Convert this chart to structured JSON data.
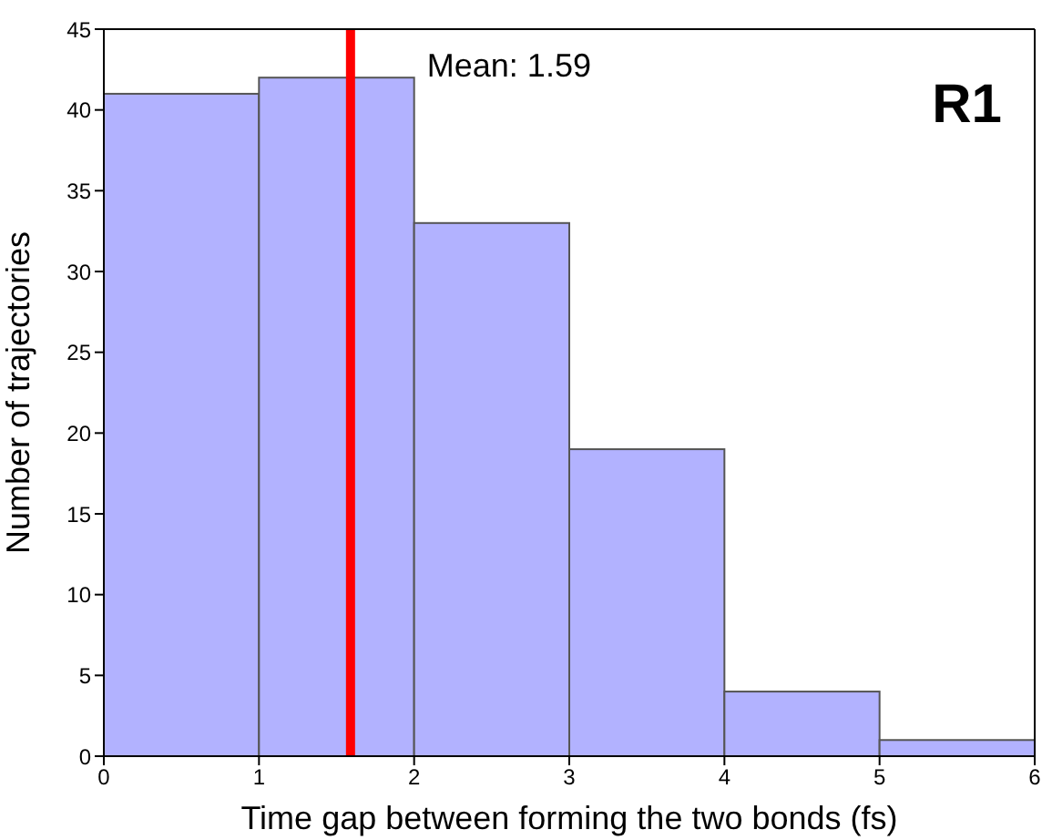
{
  "chart_data": {
    "type": "histogram",
    "bins": [
      0,
      1,
      2,
      3,
      4,
      5,
      6
    ],
    "values": [
      41,
      42,
      33,
      19,
      4,
      1
    ],
    "color": "#b2b2ff",
    "xlabel": "Time gap between forming the two bonds (fs)",
    "ylabel": "Number of trajectories",
    "xlim": [
      0,
      6
    ],
    "xticks": [
      0,
      1,
      2,
      3,
      4,
      5,
      6
    ],
    "ylim": [
      0,
      45
    ],
    "yticks": [
      0,
      5,
      10,
      15,
      20,
      25,
      30,
      35,
      40,
      45
    ],
    "ref_lines": [
      {
        "axis": "x",
        "value": 1.59,
        "label": "Mean: 1.59",
        "color": "#ff0000"
      }
    ],
    "annotations": [
      "R1"
    ]
  }
}
